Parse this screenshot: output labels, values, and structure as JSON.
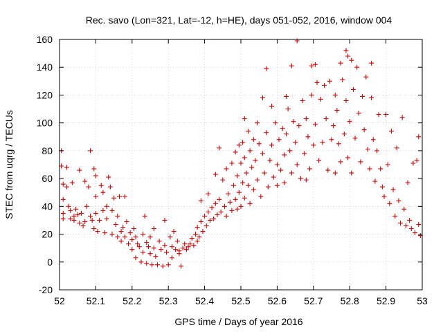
{
  "chart_data": {
    "type": "scatter",
    "title": "Rec. savo (Lon=321, Lat=-12, h=HE), days 051-052, 2016, window 004",
    "xlabel": "GPS time / Days of year 2016",
    "ylabel": "STEC from uqrg / TECUs",
    "xlim": [
      52,
      53
    ],
    "ylim": [
      -20,
      160
    ],
    "xticks": [
      "52",
      "52.1",
      "52.2",
      "52.3",
      "52.4",
      "52.5",
      "52.6",
      "52.7",
      "52.8",
      "52.9",
      "53"
    ],
    "yticks": [
      "-20",
      "0",
      "20",
      "40",
      "60",
      "80",
      "100",
      "120",
      "140",
      "160"
    ],
    "grid": true,
    "marker": "plus",
    "color": "#cc0000",
    "points": [
      [
        52.005,
        80
      ],
      [
        52.005,
        69
      ],
      [
        52.01,
        56
      ],
      [
        52.01,
        45
      ],
      [
        52.01,
        35
      ],
      [
        52.01,
        31
      ],
      [
        52.02,
        68
      ],
      [
        52.02,
        54
      ],
      [
        52.025,
        40
      ],
      [
        52.03,
        37
      ],
      [
        52.03,
        31
      ],
      [
        52.035,
        57
      ],
      [
        52.04,
        33
      ],
      [
        52.04,
        30
      ],
      [
        52.045,
        38
      ],
      [
        52.05,
        34
      ],
      [
        52.055,
        66
      ],
      [
        52.055,
        28
      ],
      [
        52.06,
        35
      ],
      [
        52.065,
        26
      ],
      [
        52.07,
        58
      ],
      [
        52.07,
        29
      ],
      [
        52.075,
        40
      ],
      [
        52.08,
        54
      ],
      [
        52.085,
        80
      ],
      [
        52.085,
        33
      ],
      [
        52.09,
        30
      ],
      [
        52.095,
        67
      ],
      [
        52.095,
        24
      ],
      [
        52.1,
        62
      ],
      [
        52.1,
        47
      ],
      [
        52.1,
        35
      ],
      [
        52.105,
        22
      ],
      [
        52.11,
        30
      ],
      [
        52.115,
        55
      ],
      [
        52.12,
        50
      ],
      [
        52.12,
        37
      ],
      [
        52.125,
        21
      ],
      [
        52.13,
        40
      ],
      [
        52.13,
        31
      ],
      [
        52.135,
        61
      ],
      [
        52.14,
        54
      ],
      [
        52.145,
        37
      ],
      [
        52.145,
        20
      ],
      [
        52.15,
        46
      ],
      [
        52.155,
        27
      ],
      [
        52.16,
        33
      ],
      [
        52.16,
        18
      ],
      [
        52.165,
        47
      ],
      [
        52.17,
        22
      ],
      [
        52.17,
        15
      ],
      [
        52.175,
        25
      ],
      [
        52.18,
        47
      ],
      [
        52.18,
        18
      ],
      [
        52.185,
        29
      ],
      [
        52.19,
        13
      ],
      [
        52.195,
        21
      ],
      [
        52.2,
        16
      ],
      [
        52.2,
        9
      ],
      [
        52.205,
        24
      ],
      [
        52.21,
        18
      ],
      [
        52.21,
        3
      ],
      [
        52.215,
        13
      ],
      [
        52.22,
        11
      ],
      [
        52.225,
        0
      ],
      [
        52.23,
        20
      ],
      [
        52.23,
        7
      ],
      [
        52.235,
        33
      ],
      [
        52.24,
        14
      ],
      [
        52.24,
        -1
      ],
      [
        52.245,
        11
      ],
      [
        52.25,
        18
      ],
      [
        52.25,
        6
      ],
      [
        52.255,
        -2
      ],
      [
        52.26,
        24
      ],
      [
        52.26,
        10
      ],
      [
        52.265,
        4
      ],
      [
        52.27,
        -2
      ],
      [
        52.275,
        15
      ],
      [
        52.28,
        9
      ],
      [
        52.285,
        -3
      ],
      [
        52.29,
        30
      ],
      [
        52.29,
        12
      ],
      [
        52.295,
        7
      ],
      [
        52.3,
        -2
      ],
      [
        52.305,
        18
      ],
      [
        52.31,
        11
      ],
      [
        52.31,
        3
      ],
      [
        52.315,
        22
      ],
      [
        52.32,
        9
      ],
      [
        52.325,
        15
      ],
      [
        52.33,
        8
      ],
      [
        52.33,
        6
      ],
      [
        52.335,
        -3
      ],
      [
        52.34,
        10
      ],
      [
        52.345,
        13
      ],
      [
        52.35,
        9
      ],
      [
        52.355,
        11
      ],
      [
        52.36,
        13
      ],
      [
        52.365,
        17
      ],
      [
        52.37,
        12
      ],
      [
        52.375,
        20
      ],
      [
        52.38,
        15
      ],
      [
        52.38,
        25
      ],
      [
        52.385,
        18
      ],
      [
        52.39,
        44
      ],
      [
        52.39,
        29
      ],
      [
        52.395,
        22
      ],
      [
        52.4,
        33
      ],
      [
        52.405,
        26
      ],
      [
        52.41,
        36
      ],
      [
        52.41,
        49
      ],
      [
        52.415,
        30
      ],
      [
        52.42,
        39
      ],
      [
        52.425,
        31
      ],
      [
        52.43,
        63
      ],
      [
        52.43,
        42
      ],
      [
        52.435,
        34
      ],
      [
        52.44,
        82
      ],
      [
        52.44,
        45
      ],
      [
        52.445,
        36
      ],
      [
        52.45,
        59
      ],
      [
        52.455,
        40
      ],
      [
        52.46,
        67
      ],
      [
        52.46,
        33
      ],
      [
        52.465,
        49
      ],
      [
        52.47,
        43
      ],
      [
        52.475,
        71
      ],
      [
        52.475,
        37
      ],
      [
        52.48,
        55
      ],
      [
        52.485,
        79
      ],
      [
        52.485,
        45
      ],
      [
        52.49,
        62
      ],
      [
        52.49,
        38
      ],
      [
        52.495,
        84
      ],
      [
        52.495,
        50
      ],
      [
        52.5,
        71
      ],
      [
        52.5,
        40
      ],
      [
        52.505,
        86
      ],
      [
        52.505,
        57
      ],
      [
        52.51,
        103
      ],
      [
        52.51,
        75
      ],
      [
        52.51,
        46
      ],
      [
        52.515,
        64
      ],
      [
        52.52,
        94
      ],
      [
        52.52,
        55
      ],
      [
        52.525,
        80
      ],
      [
        52.525,
        42
      ],
      [
        52.53,
        68
      ],
      [
        52.535,
        88
      ],
      [
        52.535,
        52
      ],
      [
        52.54,
        73
      ],
      [
        52.545,
        100
      ],
      [
        52.545,
        59
      ],
      [
        52.55,
        85
      ],
      [
        52.555,
        47
      ],
      [
        52.56,
        118
      ],
      [
        52.56,
        78
      ],
      [
        52.565,
        64
      ],
      [
        52.57,
        139
      ],
      [
        52.57,
        93
      ],
      [
        52.575,
        54
      ],
      [
        52.58,
        73
      ],
      [
        52.585,
        112
      ],
      [
        52.585,
        84
      ],
      [
        52.59,
        61
      ],
      [
        52.595,
        100
      ],
      [
        52.6,
        70
      ],
      [
        52.6,
        55
      ],
      [
        52.605,
        88
      ],
      [
        52.61,
        66
      ],
      [
        52.615,
        96
      ],
      [
        52.62,
        77
      ],
      [
        52.62,
        57
      ],
      [
        52.625,
        119
      ],
      [
        52.625,
        92
      ],
      [
        52.63,
        110
      ],
      [
        52.635,
        80
      ],
      [
        52.64,
        141
      ],
      [
        52.64,
        64
      ],
      [
        52.645,
        101
      ],
      [
        52.65,
        86
      ],
      [
        52.655,
        159
      ],
      [
        52.655,
        70
      ],
      [
        52.66,
        98
      ],
      [
        52.665,
        60
      ],
      [
        52.67,
        116
      ],
      [
        52.675,
        78
      ],
      [
        52.68,
        103
      ],
      [
        52.68,
        59
      ],
      [
        52.685,
        90
      ],
      [
        52.69,
        67
      ],
      [
        52.695,
        141
      ],
      [
        52.695,
        120
      ],
      [
        52.7,
        84
      ],
      [
        52.705,
        142
      ],
      [
        52.705,
        99
      ],
      [
        52.71,
        129
      ],
      [
        52.715,
        73
      ],
      [
        52.72,
        117
      ],
      [
        52.725,
        86
      ],
      [
        52.73,
        127
      ],
      [
        52.735,
        103
      ],
      [
        52.74,
        66
      ],
      [
        52.745,
        130
      ],
      [
        52.75,
        88
      ],
      [
        52.755,
        98
      ],
      [
        52.76,
        120
      ],
      [
        52.76,
        64
      ],
      [
        52.765,
        109
      ],
      [
        52.77,
        85
      ],
      [
        52.775,
        143
      ],
      [
        52.775,
        72
      ],
      [
        52.78,
        131
      ],
      [
        52.785,
        92
      ],
      [
        52.79,
        152
      ],
      [
        52.79,
        116
      ],
      [
        52.795,
        148
      ],
      [
        52.795,
        75
      ],
      [
        52.8,
        101
      ],
      [
        52.805,
        145
      ],
      [
        52.805,
        64
      ],
      [
        52.81,
        124
      ],
      [
        52.815,
        89
      ],
      [
        52.82,
        140
      ],
      [
        52.825,
        107
      ],
      [
        52.83,
        72
      ],
      [
        52.835,
        119
      ],
      [
        52.84,
        95
      ],
      [
        52.845,
        133
      ],
      [
        52.85,
        81
      ],
      [
        52.855,
        67
      ],
      [
        52.86,
        143
      ],
      [
        52.86,
        118
      ],
      [
        52.865,
        88
      ],
      [
        52.87,
        58
      ],
      [
        52.875,
        80
      ],
      [
        52.88,
        106
      ],
      [
        52.885,
        67
      ],
      [
        52.89,
        54
      ],
      [
        52.895,
        47
      ],
      [
        52.9,
        106
      ],
      [
        52.905,
        70
      ],
      [
        52.91,
        42
      ],
      [
        52.915,
        94
      ],
      [
        52.92,
        52
      ],
      [
        52.925,
        33
      ],
      [
        52.93,
        82
      ],
      [
        52.935,
        44
      ],
      [
        52.94,
        28
      ],
      [
        52.945,
        104
      ],
      [
        52.95,
        38
      ],
      [
        52.955,
        26
      ],
      [
        52.96,
        57
      ],
      [
        52.965,
        30
      ],
      [
        52.97,
        24
      ],
      [
        52.975,
        71
      ],
      [
        52.98,
        21
      ],
      [
        52.985,
        73
      ],
      [
        52.99,
        90
      ],
      [
        52.99,
        27
      ],
      [
        52.995,
        19
      ]
    ]
  }
}
